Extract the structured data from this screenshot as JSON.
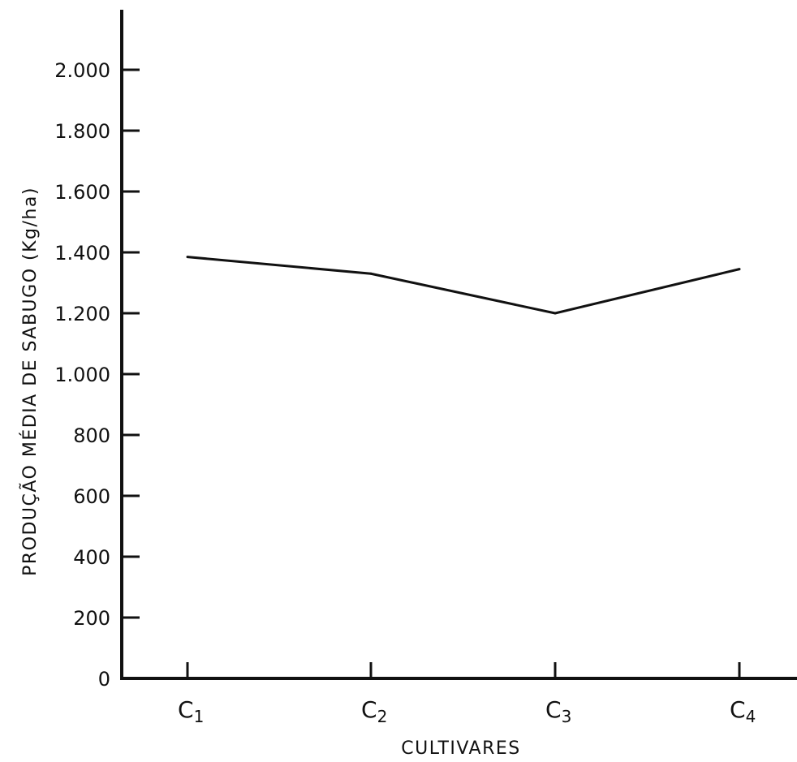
{
  "chart_data": {
    "type": "line",
    "title": "",
    "xlabel": "CULTIVARES",
    "ylabel": "PRODUÇÃO MÉDIA DE SABUGO (Kg/ha)",
    "categories": [
      {
        "base": "C",
        "sub": "1"
      },
      {
        "base": "C",
        "sub": "2"
      },
      {
        "base": "C",
        "sub": "3"
      },
      {
        "base": "C",
        "sub": "4"
      }
    ],
    "y_ticks": [
      {
        "value": 0,
        "label": "0"
      },
      {
        "value": 200,
        "label": "200"
      },
      {
        "value": 400,
        "label": "400"
      },
      {
        "value": 600,
        "label": "600"
      },
      {
        "value": 800,
        "label": "800"
      },
      {
        "value": 1000,
        "label": "1.000"
      },
      {
        "value": 1200,
        "label": "1.200"
      },
      {
        "value": 1400,
        "label": "1.400"
      },
      {
        "value": 1600,
        "label": "1.600"
      },
      {
        "value": 1800,
        "label": "1.800"
      },
      {
        "value": 2000,
        "label": "2.000"
      }
    ],
    "ylim": [
      0,
      2200
    ],
    "grid": false,
    "series": [
      {
        "values": [
          1385,
          1330,
          1200,
          1345
        ],
        "color": "#111111"
      }
    ]
  }
}
